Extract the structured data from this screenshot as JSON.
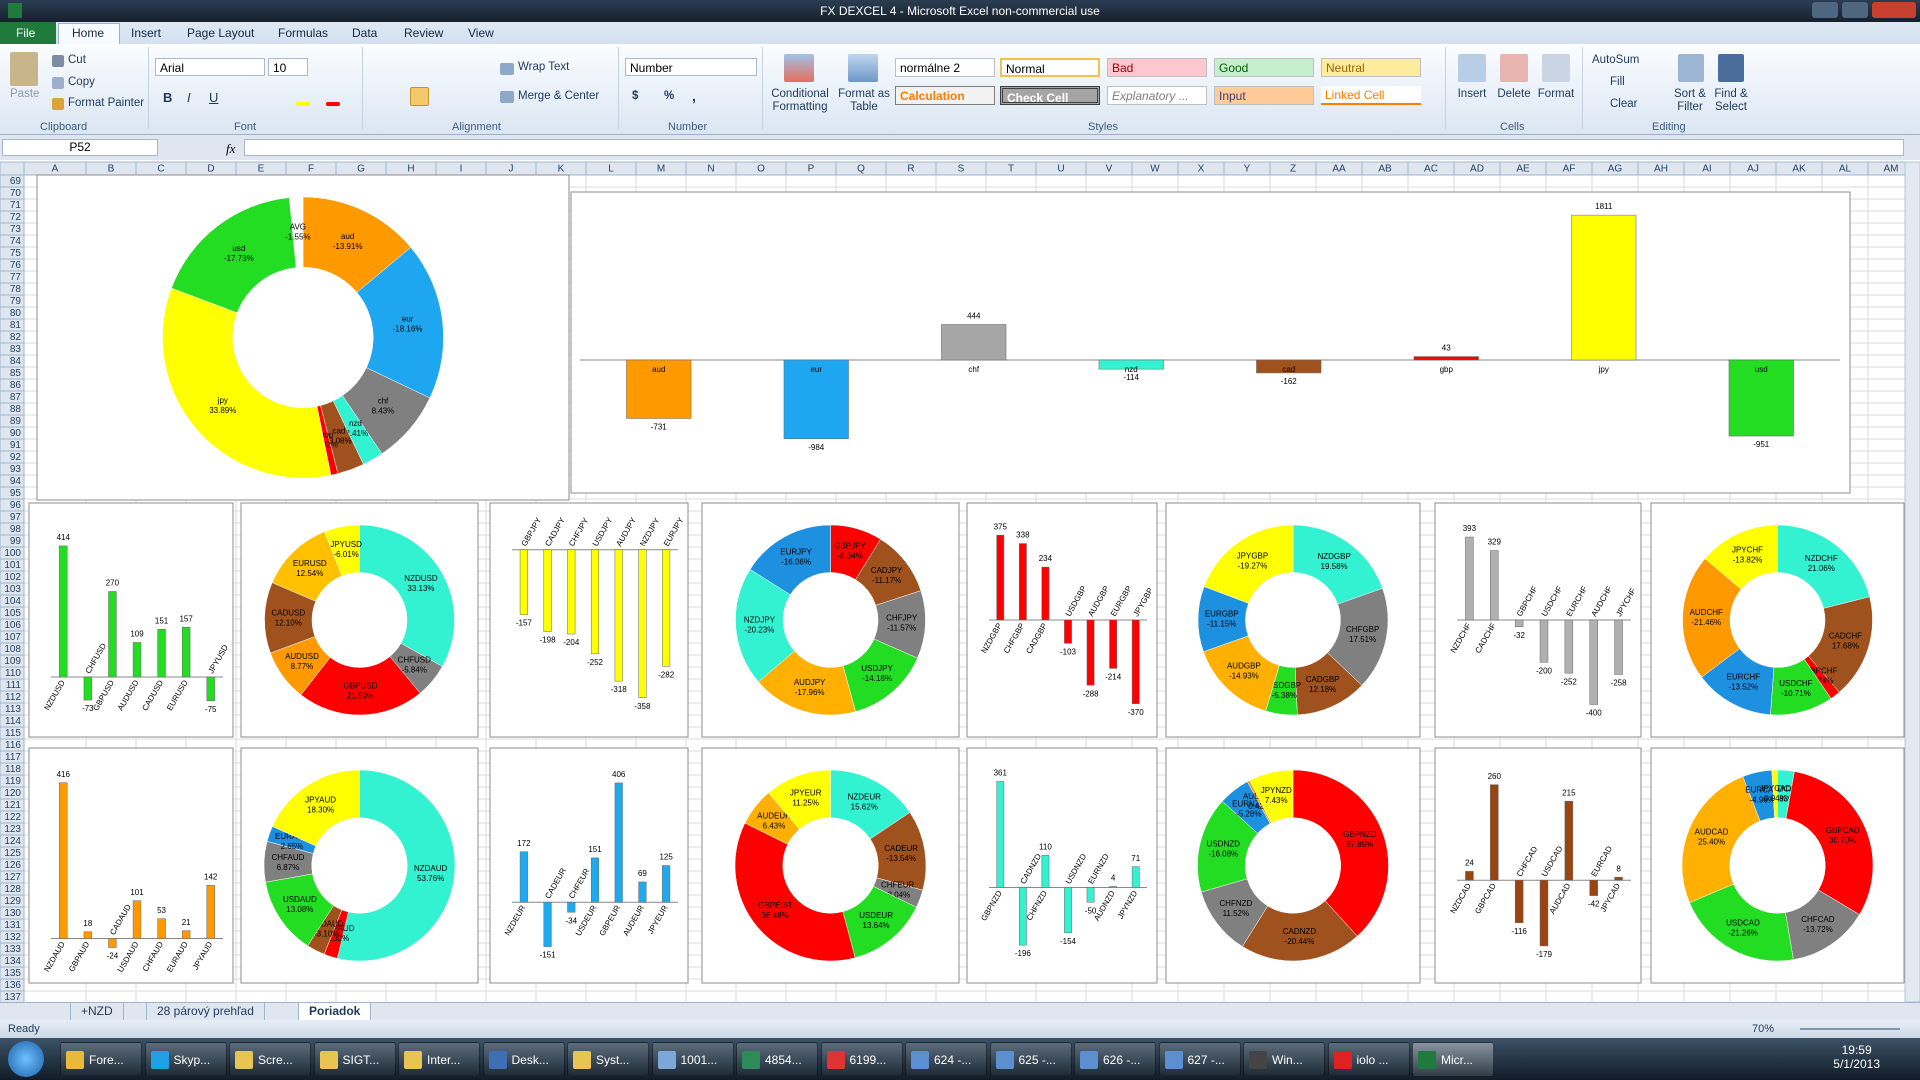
{
  "window": {
    "title": "FX DEXCEL 4  -  Microsoft Excel non-commercial use"
  },
  "ribbon": {
    "tabs": [
      "File",
      "Home",
      "Insert",
      "Page Layout",
      "Formulas",
      "Data",
      "Review",
      "View"
    ],
    "clipboard": {
      "paste": "Paste",
      "cut": "Cut",
      "copy": "Copy",
      "format_painter": "Format Painter",
      "label": "Clipboard"
    },
    "font": {
      "name": "Arial",
      "size": 10,
      "bold": "B",
      "italic": "I",
      "underline": "U",
      "label": "Font"
    },
    "alignment": {
      "wrap_text": "Wrap Text",
      "merge_center": "Merge & Center",
      "label": "Alignment"
    },
    "number": {
      "format": "Number",
      "currency": "$",
      "percent": "%",
      "comma": ",",
      "label": "Number"
    },
    "styles": {
      "conditional": "Conditional Formatting",
      "format_table": "Format as Table",
      "cells": [
        "normálne 2",
        "Normal",
        "Bad",
        "Good",
        "Neutral",
        "Calculation",
        "Check Cell",
        "Explanatory ...",
        "Input",
        "Linked Cell"
      ],
      "label": "Styles"
    },
    "cells": {
      "insert": "Insert",
      "delete": "Delete",
      "format": "Format",
      "label": "Cells"
    },
    "editing": {
      "autosum": "AutoSum",
      "fill": "Fill",
      "clear": "Clear",
      "sort_filter": "Sort & Filter",
      "find_select": "Find & Select",
      "label": "Editing"
    }
  },
  "formula_bar": {
    "name_box": "P52",
    "fx": "fx"
  },
  "sheet": {
    "columns": [
      "A",
      "B",
      "C",
      "D",
      "E",
      "F",
      "G",
      "H",
      "I",
      "J",
      "K",
      "L",
      "M",
      "N",
      "O",
      "P",
      "Q",
      "R",
      "S",
      "T",
      "U",
      "V",
      "W",
      "X",
      "Y",
      "Z",
      "AA",
      "AB",
      "AC",
      "AD",
      "AE",
      "AF",
      "AG",
      "AH",
      "AI",
      "AJ",
      "AK",
      "AL",
      "AM"
    ],
    "rows": [
      69,
      70,
      71,
      72,
      73,
      74,
      75,
      76,
      77,
      78,
      79,
      80,
      81,
      82,
      83,
      84,
      85,
      86,
      87,
      88,
      89,
      90,
      91,
      92,
      93,
      94,
      95,
      96,
      97,
      98,
      99,
      100,
      101,
      102,
      103,
      104,
      105,
      106,
      107,
      108,
      109,
      110,
      111,
      112,
      113,
      114,
      115,
      116,
      117,
      118,
      119,
      120,
      121,
      122,
      123,
      124,
      125,
      126,
      127,
      128,
      129,
      130,
      131,
      132,
      133,
      134,
      135,
      136,
      137
    ]
  },
  "chart_data": [
    {
      "type": "doughnut",
      "categories": [
        "aud",
        "eur",
        "chf",
        "nzd",
        "cad",
        "gbp",
        "jpy",
        "usd",
        "AVG"
      ],
      "values": [
        -13.91,
        -18.16,
        8.43,
        -2.41,
        -3.08,
        0.82,
        33.89,
        -17.73,
        -1.55
      ],
      "value_labels": [
        "-13.91%",
        "-18.16%",
        "8.43%",
        "-2.41%",
        "-3.08%",
        "0.82%",
        "33.89%",
        "-17.73%",
        "-1.55%"
      ],
      "colors": [
        "#ff9900",
        "#1ea7f0",
        "#808080",
        "#33f2d2",
        "#a0521e",
        "#ff0000",
        "#ffff00",
        "#22dd22",
        "#ffffff"
      ]
    },
    {
      "type": "bar",
      "categories": [
        "aud",
        "eur",
        "chf",
        "nzd",
        "cad",
        "gbp",
        "jpy",
        "usd"
      ],
      "values": [
        -731,
        -984,
        444,
        -114,
        -162,
        43,
        1811,
        -951
      ],
      "colors": [
        "#ff9900",
        "#1ea7f0",
        "#a6a6a6",
        "#33f2d2",
        "#a0521e",
        "#ff0000",
        "#ffff00",
        "#22dd22"
      ],
      "ylim": [
        -1500,
        2000
      ]
    },
    {
      "type": "bar",
      "categories": [
        "NZDUSD",
        "CHFUSD",
        "GBPUSD",
        "AUDUSD",
        "CADUSD",
        "EURUSD",
        "JPYUSD"
      ],
      "values": [
        414,
        -73,
        270,
        109,
        151,
        157,
        -75
      ],
      "color": "#22dd22",
      "ylim": [
        -120,
        480
      ]
    },
    {
      "type": "doughnut",
      "categories": [
        "NZDUSD",
        "CHFUSD",
        "GBPUSD",
        "AUDUSD",
        "CADUSD",
        "EURUSD",
        "JPYUSD"
      ],
      "values": [
        33.13,
        -5.84,
        21.59,
        8.77,
        12.1,
        12.54,
        -6.01
      ],
      "value_labels": [
        "33.13%",
        "-5.84%",
        "21.59%",
        "8.77%",
        "12.10%",
        "12.54%",
        "-6.01%"
      ],
      "colors": [
        "#33f2d2",
        "#808080",
        "#ff0000",
        "#ff9900",
        "#a0521e",
        "#ffc000",
        "#ffff00"
      ]
    },
    {
      "type": "bar",
      "categories": [
        "GBPJPY",
        "CADJPY",
        "CHFJPY",
        "USDJPY",
        "AUDJPY",
        "NZDJPY",
        "EURJPY"
      ],
      "values": [
        -157,
        -198,
        -204,
        -252,
        -318,
        -358,
        -282
      ],
      "color": "#ffff00",
      "ylim": [
        -400,
        60
      ]
    },
    {
      "type": "doughnut",
      "categories": [
        "GBPJPY",
        "CADJPY",
        "CHFJPY",
        "USDJPY",
        "AUDJPY",
        "NZDJPY",
        "EURJPY"
      ],
      "values": [
        -8.84,
        -11.17,
        -11.57,
        -14.18,
        -17.96,
        -20.23,
        -16.06
      ],
      "value_labels": [
        "-8.84%",
        "-11.17%",
        "-11.57%",
        "-14.18%",
        "-17.96%",
        "-20.23%",
        "-16.06%"
      ],
      "colors": [
        "#ff0000",
        "#a0521e",
        "#808080",
        "#22dd22",
        "#ffb000",
        "#33f2d2",
        "#1e90e0"
      ]
    },
    {
      "type": "bar",
      "categories": [
        "NZDGBP",
        "CHFGBP",
        "CADGBP",
        "USDGBP",
        "AUDGBP",
        "EURGBP",
        "JPYGBP"
      ],
      "values": [
        375,
        338,
        234,
        -103,
        -288,
        -214,
        -370
      ],
      "color": "#ff0000",
      "ylim": [
        -420,
        420
      ]
    },
    {
      "type": "doughnut",
      "categories": [
        "NZDGBP",
        "CHFGBP",
        "CADGBP",
        "USDGBP",
        "AUDGBP",
        "EURGBP",
        "JPYGBP"
      ],
      "values": [
        19.58,
        17.51,
        12.18,
        -5.38,
        -14.93,
        -11.15,
        -19.27
      ],
      "value_labels": [
        "19.58%",
        "17.51%",
        "12.18%",
        "-5.38%",
        "-14.93%",
        "-11.15%",
        "-19.27%"
      ],
      "colors": [
        "#33f2d2",
        "#808080",
        "#a0521e",
        "#22dd22",
        "#ffb000",
        "#1e90e0",
        "#ffff00"
      ]
    },
    {
      "type": "bar",
      "categories": [
        "NZDCHF",
        "CADCHF",
        "GBPCHF",
        "USDCHF",
        "EURCHF",
        "AUDCHF",
        "JPYCHF"
      ],
      "values": [
        393,
        329,
        -32,
        -200,
        -252,
        -400,
        -258
      ],
      "color": "#b0b0b0",
      "ylim": [
        -450,
        450
      ]
    },
    {
      "type": "doughnut",
      "categories": [
        "NZDCHF",
        "CADCHF",
        "GBPCHF",
        "USDCHF",
        "EURCHF",
        "AUDCHF",
        "JPYCHF"
      ],
      "values": [
        21.06,
        17.68,
        -1.74,
        -10.71,
        -13.52,
        -21.46,
        -13.82
      ],
      "value_labels": [
        "21.06%",
        "17.68%",
        "-1.74%",
        "-10.71%",
        "-13.52%",
        "-21.46%",
        "-13.82%"
      ],
      "colors": [
        "#33f2d2",
        "#a0521e",
        "#ff0000",
        "#22dd22",
        "#1e90e0",
        "#ff9900",
        "#ffff00"
      ]
    },
    {
      "type": "bar",
      "categories": [
        "NZDAUD",
        "GBPAUD",
        "CADAUD",
        "USDAUD",
        "CHFAUD",
        "EURAUD",
        "JPYAUD"
      ],
      "values": [
        416,
        18,
        -24,
        101,
        53,
        21,
        142
      ],
      "color": "#ff9900",
      "ylim": [
        -60,
        450
      ]
    },
    {
      "type": "doughnut",
      "categories": [
        "NZDAUD",
        "GBPAUD",
        "CADAUD",
        "USDAUD",
        "CHFAUD",
        "EURAUD",
        "JPYAUD"
      ],
      "values": [
        53.76,
        2.32,
        -3.1,
        13.08,
        6.87,
        2.65,
        18.3
      ],
      "value_labels": [
        "53.76%",
        "2.32%",
        "-3.10%",
        "13.08%",
        "6.87%",
        "2.65%",
        "18.30%"
      ],
      "colors": [
        "#33f2d2",
        "#ff0000",
        "#a0521e",
        "#22dd22",
        "#808080",
        "#1e90e0",
        "#ffff00"
      ]
    },
    {
      "type": "bar",
      "categories": [
        "NZDEUR",
        "CADEUR",
        "CHFEUR",
        "USDEUR",
        "GBPEUR",
        "AUDEUR",
        "JPYEUR"
      ],
      "values": [
        172,
        -151,
        -34,
        151,
        406,
        69,
        125
      ],
      "color": "#1eaaee",
      "ylim": [
        -200,
        450
      ]
    },
    {
      "type": "doughnut",
      "categories": [
        "NZDEUR",
        "CADEUR",
        "CHFEUR",
        "USDEUR",
        "GBPEUR",
        "AUDEUR",
        "JPYEUR"
      ],
      "values": [
        15.62,
        -13.54,
        -3.04,
        13.64,
        36.48,
        6.43,
        11.25
      ],
      "value_labels": [
        "15.62%",
        "-13.54%",
        "-3.04%",
        "13.64%",
        "36.48%",
        "6.43%",
        "11.25%"
      ],
      "colors": [
        "#33f2d2",
        "#a0521e",
        "#808080",
        "#22dd22",
        "#ff0000",
        "#ffb000",
        "#ffff00"
      ]
    },
    {
      "type": "bar",
      "categories": [
        "GBPNZD",
        "CADNZD",
        "CHFNZD",
        "USDNZD",
        "EURNZD",
        "AUDNZD",
        "JPYNZD"
      ],
      "values": [
        361,
        -196,
        110,
        -154,
        -50,
        4,
        71
      ],
      "color": "#33f2d2",
      "ylim": [
        -250,
        400
      ]
    },
    {
      "type": "doughnut",
      "categories": [
        "GBPNZD",
        "CADNZD",
        "CHFNZD",
        "USDNZD",
        "EURNZD",
        "AUDNZD",
        "JPYNZD"
      ],
      "values": [
        37.89,
        -20.44,
        11.52,
        -16.08,
        -5.28,
        0.42,
        7.43
      ],
      "value_labels": [
        "37.89%",
        "-20.44%",
        "11.52%",
        "-16.08%",
        "-5.28%",
        "0.42%",
        "7.43%"
      ],
      "colors": [
        "#ff0000",
        "#a0521e",
        "#808080",
        "#22dd22",
        "#1e90e0",
        "#ff9900",
        "#ffff00"
      ]
    },
    {
      "type": "bar",
      "categories": [
        "NZDCAD",
        "GBPCAD",
        "CHFCAD",
        "USDCAD",
        "AUDCAD",
        "EURCAD",
        "JPYCAD"
      ],
      "values": [
        24,
        260,
        -116,
        -179,
        215,
        -42,
        8
      ],
      "color": "#994411",
      "ylim": [
        -220,
        300
      ]
    },
    {
      "type": "doughnut",
      "categories": [
        "NZDCAD",
        "GBPCAD",
        "CHFCAD",
        "USDCAD",
        "AUDCAD",
        "EURCAD",
        "JPYCAD"
      ],
      "values": [
        2.83,
        30.7,
        -13.72,
        -21.26,
        25.4,
        -4.96,
        0.94
      ],
      "value_labels": [
        "2.83%",
        "30.70%",
        "-13.72%",
        "-21.26%",
        "25.40%",
        "-4.96%",
        "0.94%"
      ],
      "colors": [
        "#33f2d2",
        "#ff0000",
        "#808080",
        "#22dd22",
        "#ffb000",
        "#1e90e0",
        "#ffff00"
      ]
    }
  ],
  "sheet_tabs": {
    "tabs": [
      "+NZD",
      "28 párový prehľad",
      "Poriadok"
    ],
    "active": 2
  },
  "status": {
    "ready": "Ready",
    "zoom": "70%"
  },
  "taskbar": {
    "items": [
      "Fore...",
      "Skyp...",
      "Scre...",
      "SIGT...",
      "Inter...",
      "Desk...",
      "Syst...",
      "1001...",
      "4854...",
      "6199...",
      "624 -...",
      "625 -...",
      "626 -...",
      "627 -...",
      "Win...",
      "iolo ...",
      "Micr..."
    ],
    "time": "19:59",
    "date": "5/1/2013"
  }
}
